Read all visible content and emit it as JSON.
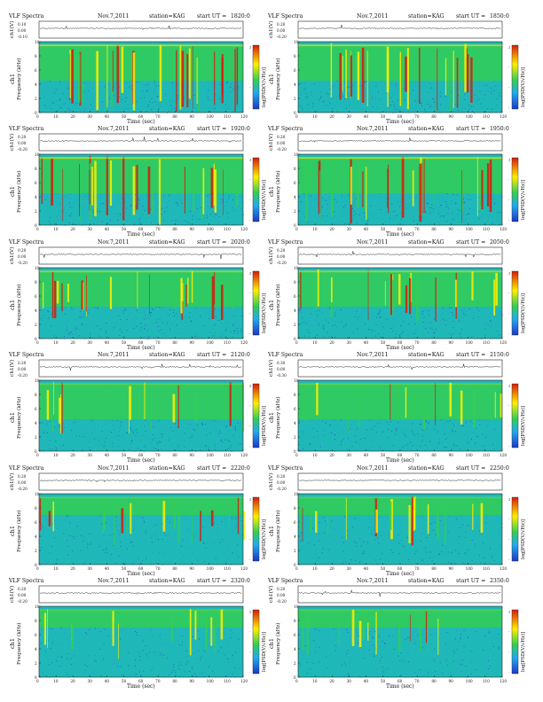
{
  "header": {
    "title": "VLF Spectra",
    "date": "Nov.7,2011",
    "station_label": "station=KAG",
    "start_prefix": "start  UT  ="
  },
  "labels": {
    "ts_ylabel": "ch1(V)",
    "spec_ylabel_channel": "ch1",
    "spec_ylabel": "Frequency  (kHz)",
    "xlabel": "Time  (sec)",
    "colorbar_label": "log[PSD(V/√Hz)]"
  },
  "chart_data": [
    {
      "type": "heatmap",
      "start_ut": "1820:0",
      "x_range": [
        0,
        120
      ],
      "x_ticks": [
        0,
        10,
        20,
        30,
        40,
        50,
        60,
        70,
        80,
        90,
        100,
        110,
        120
      ],
      "y_range_khz": [
        0,
        10
      ],
      "y_ticks": [
        0,
        2,
        4,
        6,
        8,
        10
      ],
      "ts_range_v": [
        -0.1,
        0.1
      ],
      "ts_ticks": [
        "0.10",
        "0.00",
        "-0.10"
      ],
      "activity": "high",
      "colorbar_ticks": [
        "2",
        "-",
        "-",
        "-"
      ],
      "colors": {
        "low": "#1a38c8",
        "mid": "#33cc55",
        "high": "#ffee00",
        "peak": "#d81a0a"
      }
    },
    {
      "type": "heatmap",
      "start_ut": "1850:0",
      "x_range": [
        0,
        120
      ],
      "x_ticks": [
        0,
        10,
        20,
        30,
        40,
        50,
        60,
        70,
        80,
        90,
        100,
        110,
        120
      ],
      "y_range_khz": [
        0,
        10
      ],
      "y_ticks": [
        0,
        2,
        4,
        6,
        8,
        10
      ],
      "ts_range_v": [
        -0.2,
        0.2
      ],
      "ts_ticks": [
        "0.20",
        "0.00",
        "-0.20"
      ],
      "activity": "high",
      "colorbar_ticks": [
        "2",
        "-",
        "-",
        "-"
      ],
      "colors": {
        "low": "#1a38c8",
        "mid": "#33cc55",
        "high": "#ffee00",
        "peak": "#d81a0a"
      }
    },
    {
      "type": "heatmap",
      "start_ut": "1920:0",
      "x_range": [
        0,
        120
      ],
      "x_ticks": [
        0,
        10,
        20,
        30,
        40,
        50,
        60,
        70,
        80,
        90,
        100,
        110,
        120
      ],
      "y_range_khz": [
        0,
        10
      ],
      "y_ticks": [
        0,
        2,
        4,
        6,
        8,
        10
      ],
      "ts_range_v": [
        -0.2,
        0.2
      ],
      "ts_ticks": [
        "0.20",
        "0.00",
        "-0.20"
      ],
      "activity": "high",
      "colorbar_ticks": [
        "2",
        "-",
        "-",
        "-"
      ],
      "colors": {
        "low": "#1a38c8",
        "mid": "#33cc55",
        "high": "#ffee00",
        "peak": "#d81a0a"
      }
    },
    {
      "type": "heatmap",
      "start_ut": "1950:0",
      "x_range": [
        0,
        120
      ],
      "x_ticks": [
        0,
        10,
        20,
        30,
        40,
        50,
        60,
        70,
        80,
        90,
        100,
        110,
        120
      ],
      "y_range_khz": [
        0,
        10
      ],
      "y_ticks": [
        0,
        2,
        4,
        6,
        8,
        10
      ],
      "ts_range_v": [
        -0.2,
        0.2
      ],
      "ts_ticks": [
        "0.20",
        "0.00",
        "-0.20"
      ],
      "activity": "high",
      "colorbar_ticks": [
        "2",
        "-",
        "-",
        "-"
      ],
      "colors": {
        "low": "#1a38c8",
        "mid": "#33cc55",
        "high": "#ffee00",
        "peak": "#d81a0a"
      }
    },
    {
      "type": "heatmap",
      "start_ut": "2020:0",
      "x_range": [
        0,
        120
      ],
      "x_ticks": [
        0,
        10,
        20,
        30,
        40,
        50,
        60,
        70,
        80,
        90,
        100,
        110,
        120
      ],
      "y_range_khz": [
        0,
        10
      ],
      "y_ticks": [
        0,
        2,
        4,
        6,
        8,
        10
      ],
      "ts_range_v": [
        -0.2,
        0.2
      ],
      "ts_ticks": [
        "0.20",
        "0.00",
        "-0.20"
      ],
      "activity": "mid",
      "colorbar_ticks": [
        "2",
        "-",
        "-",
        "-"
      ],
      "colors": {
        "low": "#1a38c8",
        "mid": "#33cc55",
        "high": "#ffee00",
        "peak": "#d81a0a"
      }
    },
    {
      "type": "heatmap",
      "start_ut": "2050:0",
      "x_range": [
        0,
        120
      ],
      "x_ticks": [
        0,
        10,
        20,
        30,
        40,
        50,
        60,
        70,
        80,
        90,
        100,
        110,
        120
      ],
      "y_range_khz": [
        0,
        10
      ],
      "y_ticks": [
        0,
        2,
        4,
        6,
        8,
        10
      ],
      "ts_range_v": [
        -0.2,
        0.2
      ],
      "ts_ticks": [
        "0.20",
        "0.00",
        "-0.20"
      ],
      "activity": "mid",
      "colorbar_ticks": [
        "2",
        "-",
        "-",
        "-"
      ],
      "colors": {
        "low": "#1a38c8",
        "mid": "#33cc55",
        "high": "#ffee00",
        "peak": "#d81a0a"
      }
    },
    {
      "type": "heatmap",
      "start_ut": "2120:0",
      "x_range": [
        0,
        120
      ],
      "x_ticks": [
        0,
        10,
        20,
        30,
        40,
        50,
        60,
        70,
        80,
        90,
        100,
        110,
        120
      ],
      "y_range_khz": [
        0,
        10
      ],
      "y_ticks": [
        0,
        2,
        4,
        6,
        8,
        10
      ],
      "ts_range_v": [
        -0.2,
        0.2
      ],
      "ts_ticks": [
        "0.20",
        "0.00",
        "-0.20"
      ],
      "activity": "low",
      "colorbar_ticks": [
        "2",
        "-",
        "-",
        "-"
      ],
      "colors": {
        "low": "#1a38c8",
        "mid": "#33cc55",
        "high": "#ffee00",
        "peak": "#d81a0a"
      }
    },
    {
      "type": "heatmap",
      "start_ut": "2150:0",
      "x_range": [
        0,
        120
      ],
      "x_ticks": [
        0,
        10,
        20,
        30,
        40,
        50,
        60,
        70,
        80,
        90,
        100,
        110,
        120
      ],
      "y_range_khz": [
        0,
        10
      ],
      "y_ticks": [
        0,
        2,
        4,
        6,
        8,
        10
      ],
      "ts_range_v": [
        -0.3,
        0.3
      ],
      "ts_ticks": [
        "0.30",
        "0.00",
        "-0.30"
      ],
      "activity": "low",
      "colorbar_ticks": [
        "2",
        "-",
        "-",
        "-"
      ],
      "colors": {
        "low": "#1a38c8",
        "mid": "#33cc55",
        "high": "#ffee00",
        "peak": "#d81a0a"
      }
    },
    {
      "type": "heatmap",
      "start_ut": "2220:0",
      "x_range": [
        0,
        120
      ],
      "x_ticks": [
        0,
        10,
        20,
        30,
        40,
        50,
        60,
        70,
        80,
        90,
        100,
        110,
        120
      ],
      "y_range_khz": [
        0,
        10
      ],
      "y_ticks": [
        0,
        2,
        4,
        6,
        8,
        10
      ],
      "ts_range_v": [
        -0.2,
        0.2
      ],
      "ts_ticks": [
        "0.20",
        "0.00",
        "-0.20"
      ],
      "activity": "lower",
      "colorbar_ticks": [
        "2",
        "-",
        "-",
        "-"
      ],
      "colors": {
        "low": "#1a38c8",
        "mid": "#33cc55",
        "high": "#ffee00",
        "peak": "#d81a0a"
      }
    },
    {
      "type": "heatmap",
      "start_ut": "2250:0",
      "x_range": [
        0,
        120
      ],
      "x_ticks": [
        0,
        10,
        20,
        30,
        40,
        50,
        60,
        70,
        80,
        90,
        100,
        110,
        120
      ],
      "y_range_khz": [
        0,
        10
      ],
      "y_ticks": [
        0,
        2,
        4,
        6,
        8,
        10
      ],
      "ts_range_v": [
        -0.2,
        0.2
      ],
      "ts_ticks": [
        "0.20",
        "0.00",
        "-0.20"
      ],
      "activity": "lower",
      "colorbar_ticks": [
        "2",
        "-",
        "-",
        "-"
      ],
      "colors": {
        "low": "#1a38c8",
        "mid": "#33cc55",
        "high": "#ffee00",
        "peak": "#d81a0a"
      }
    },
    {
      "type": "heatmap",
      "start_ut": "2320:0",
      "x_range": [
        0,
        120
      ],
      "x_ticks": [
        0,
        10,
        20,
        30,
        40,
        50,
        60,
        70,
        80,
        90,
        100,
        110,
        120
      ],
      "y_range_khz": [
        0,
        10
      ],
      "y_ticks": [
        0,
        2,
        4,
        6,
        8,
        10
      ],
      "ts_range_v": [
        -0.2,
        0.2
      ],
      "ts_ticks": [
        "0.20",
        "0.00",
        "-0.20"
      ],
      "activity": "quiet",
      "colorbar_ticks": [
        "2",
        "-",
        "-",
        "-"
      ],
      "colors": {
        "low": "#1a38c8",
        "mid": "#33cc55",
        "high": "#ffee00",
        "peak": "#d81a0a"
      }
    },
    {
      "type": "heatmap",
      "start_ut": "2350:0",
      "x_range": [
        0,
        120
      ],
      "x_ticks": [
        0,
        10,
        20,
        30,
        40,
        50,
        60,
        70,
        80,
        90,
        100,
        110,
        120
      ],
      "y_range_khz": [
        0,
        10
      ],
      "y_ticks": [
        0,
        2,
        4,
        6,
        8,
        10
      ],
      "ts_range_v": [
        -0.2,
        0.2
      ],
      "ts_ticks": [
        "0.20",
        "0.00",
        "-0.20"
      ],
      "activity": "quiet",
      "colorbar_ticks": [
        "2",
        "-",
        "-",
        "-"
      ],
      "colors": {
        "low": "#1a38c8",
        "mid": "#33cc55",
        "high": "#ffee00",
        "peak": "#d81a0a"
      }
    }
  ]
}
